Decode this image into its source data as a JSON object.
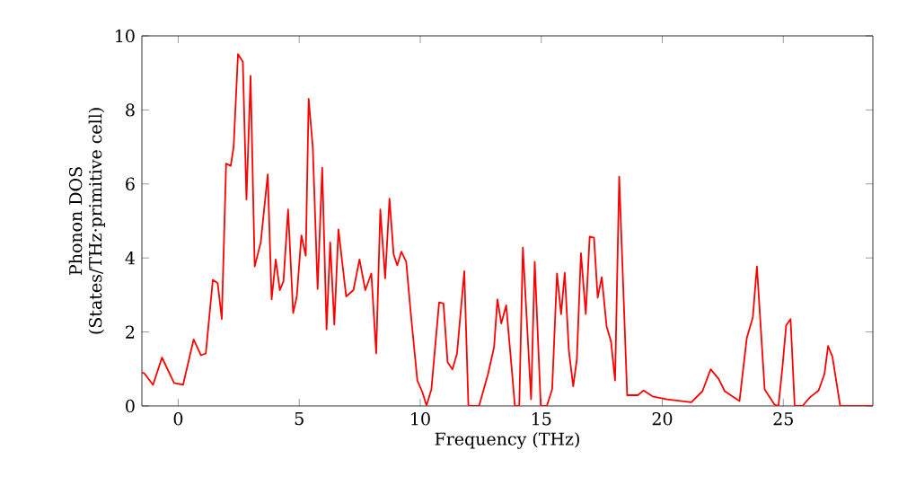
{
  "chart_data": {
    "type": "line",
    "xlabel": "Frequency (THz)",
    "ylabel": "Phonon DOS\n(States/THz·primitive cell)",
    "xlim": [
      -1.5,
      28.7
    ],
    "ylim": [
      0,
      10
    ],
    "xticks": [
      0,
      5,
      10,
      15,
      20,
      25
    ],
    "yticks": [
      0,
      2,
      4,
      6,
      8,
      10
    ],
    "grid": false,
    "marker": "none",
    "line_style": "solid",
    "series": [
      {
        "color": "#ff0000",
        "x": [
          -1.5,
          -1.41,
          -1.04,
          -0.67,
          -0.17,
          0.2,
          0.64,
          0.94,
          1.14,
          1.43,
          1.63,
          1.8,
          1.98,
          2.17,
          2.29,
          2.47,
          2.67,
          2.82,
          2.99,
          3.16,
          3.41,
          3.7,
          3.86,
          4.03,
          4.2,
          4.35,
          4.54,
          4.75,
          4.9,
          5.09,
          5.27,
          5.39,
          5.56,
          5.76,
          5.95,
          6.13,
          6.28,
          6.45,
          6.62,
          6.94,
          7.24,
          7.49,
          7.73,
          7.98,
          8.18,
          8.35,
          8.55,
          8.73,
          8.9,
          9.05,
          9.22,
          9.42,
          9.59,
          9.88,
          10.09,
          10.26,
          10.46,
          10.78,
          10.96,
          11.13,
          11.33,
          11.52,
          11.82,
          11.99,
          12.43,
          12.8,
          13.05,
          13.19,
          13.35,
          13.55,
          13.8,
          13.91,
          14.09,
          14.24,
          14.58,
          14.73,
          14.98,
          15.23,
          15.45,
          15.65,
          15.82,
          15.97,
          16.14,
          16.32,
          16.47,
          16.64,
          16.84,
          17.0,
          17.18,
          17.33,
          17.5,
          17.7,
          17.88,
          18.05,
          18.22,
          18.55,
          18.99,
          19.23,
          19.6,
          20.2,
          21.2,
          21.66,
          22.0,
          22.33,
          22.58,
          23.19,
          23.49,
          23.74,
          23.91,
          24.23,
          24.63,
          24.8,
          24.97,
          25.12,
          25.3,
          25.47,
          25.79,
          26.11,
          26.46,
          26.7,
          26.85,
          27.03,
          27.35,
          28.7
        ],
        "values": [
          0.9,
          0.89,
          0.57,
          1.31,
          0.62,
          0.57,
          1.8,
          1.37,
          1.42,
          3.41,
          3.32,
          2.35,
          6.55,
          6.49,
          7.0,
          9.51,
          9.3,
          5.58,
          8.92,
          3.77,
          4.42,
          6.26,
          2.88,
          3.96,
          3.13,
          3.37,
          5.31,
          2.51,
          2.96,
          4.61,
          4.06,
          8.3,
          7.0,
          3.16,
          6.44,
          2.07,
          4.42,
          2.2,
          4.77,
          2.96,
          3.13,
          3.96,
          3.13,
          3.58,
          1.42,
          5.31,
          3.45,
          5.6,
          4.1,
          3.8,
          4.17,
          3.9,
          2.64,
          0.69,
          0.37,
          0.01,
          0.45,
          2.8,
          2.77,
          1.18,
          0.99,
          1.42,
          3.64,
          0,
          0,
          0.86,
          1.59,
          2.88,
          2.23,
          2.72,
          0.86,
          0,
          0,
          4.28,
          0.18,
          3.9,
          0,
          0,
          0.45,
          3.58,
          2.48,
          3.6,
          1.5,
          0.53,
          1.26,
          4.13,
          2.48,
          4.58,
          4.55,
          2.93,
          3.48,
          2.15,
          1.75,
          0.69,
          6.2,
          0.29,
          0.29,
          0.42,
          0.26,
          0.18,
          0.1,
          0.4,
          0.99,
          0.73,
          0.4,
          0.13,
          1.83,
          2.39,
          3.77,
          0.45,
          0.04,
          0,
          1.09,
          2.18,
          2.35,
          0,
          0,
          0.24,
          0.42,
          0.86,
          1.62,
          1.33,
          0,
          0
        ]
      }
    ]
  }
}
